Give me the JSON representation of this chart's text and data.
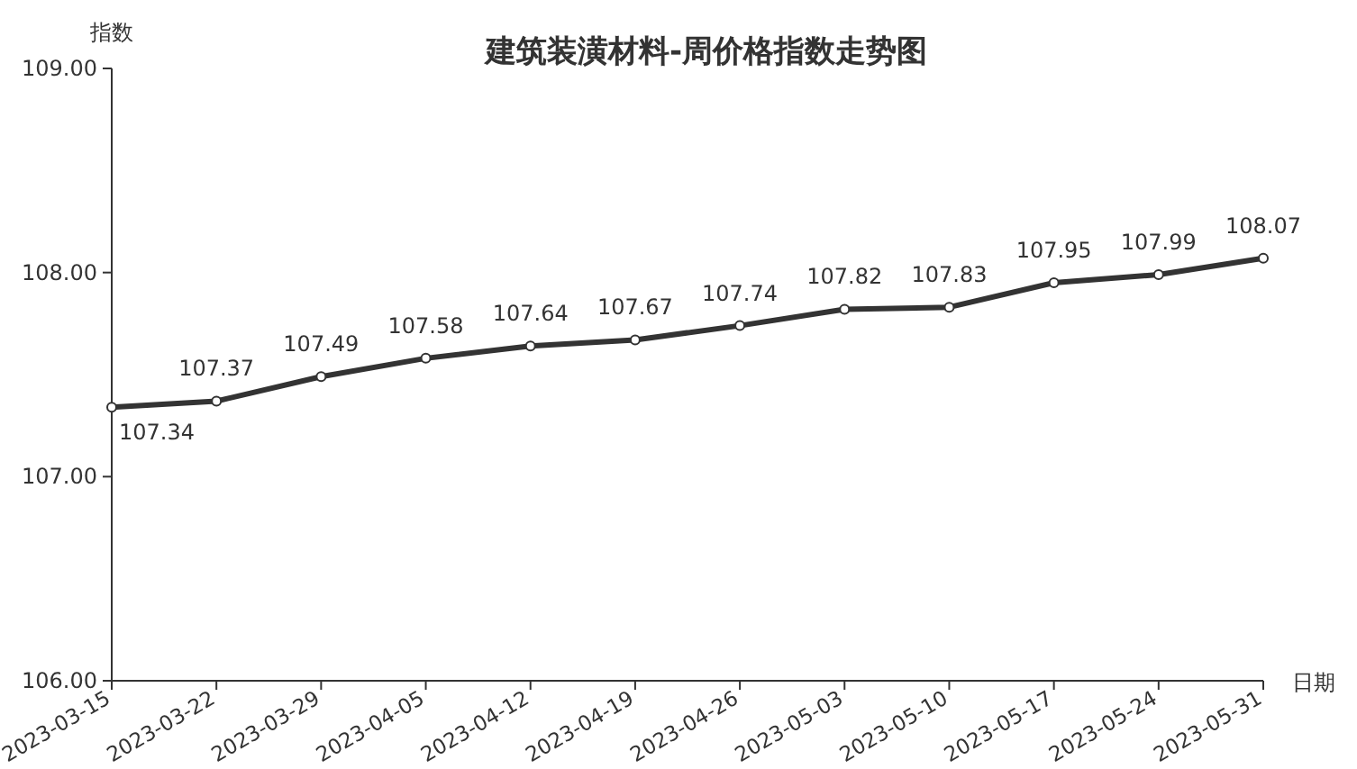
{
  "chart_data": {
    "type": "line",
    "title": "建筑装潢材料-周价格指数走势图",
    "xlabel": "日期",
    "ylabel": "指数",
    "categories": [
      "2023-03-15",
      "2023-03-22",
      "2023-03-29",
      "2023-04-05",
      "2023-04-12",
      "2023-04-19",
      "2023-04-26",
      "2023-05-03",
      "2023-05-10",
      "2023-05-17",
      "2023-05-24",
      "2023-05-31"
    ],
    "series": [
      {
        "color": "#333333",
        "values": [
          107.34,
          107.37,
          107.49,
          107.58,
          107.64,
          107.67,
          107.74,
          107.82,
          107.83,
          107.95,
          107.99,
          108.07
        ]
      }
    ],
    "ylim": [
      106,
      109
    ],
    "yticks": [
      {
        "value": 106,
        "label": "106.00"
      },
      {
        "value": 107,
        "label": "107.00"
      },
      {
        "value": 108,
        "label": "108.00"
      },
      {
        "value": 109,
        "label": "109.00"
      }
    ],
    "grid": false,
    "marker": "circle",
    "line_style": "solid",
    "data_labels": true
  }
}
